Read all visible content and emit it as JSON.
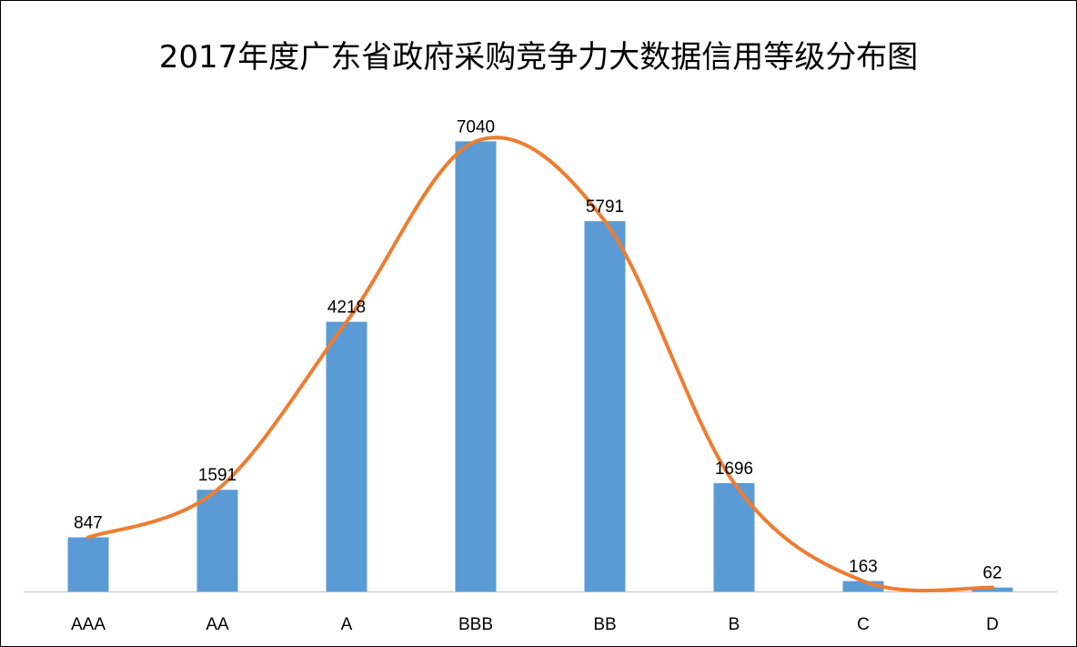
{
  "chart_data": {
    "type": "bar",
    "title": "2017年度广东省政府采购竞争力大数据信用等级分布图",
    "categories": [
      "AAA",
      "AA",
      "A",
      "BBB",
      "BB",
      "B",
      "C",
      "D"
    ],
    "values": [
      847,
      1591,
      4218,
      7040,
      5791,
      1696,
      163,
      62
    ],
    "data_labels": [
      "847",
      "1591",
      "4218",
      "7040",
      "5791",
      "1696",
      "163",
      "62"
    ],
    "overlay": "smooth-line",
    "ylim": [
      0,
      7500
    ],
    "grid": false,
    "legend": "none",
    "colors": {
      "bar": "#5B9BD5",
      "line": "#ED7D31",
      "axis": "#BFBFBF"
    }
  }
}
